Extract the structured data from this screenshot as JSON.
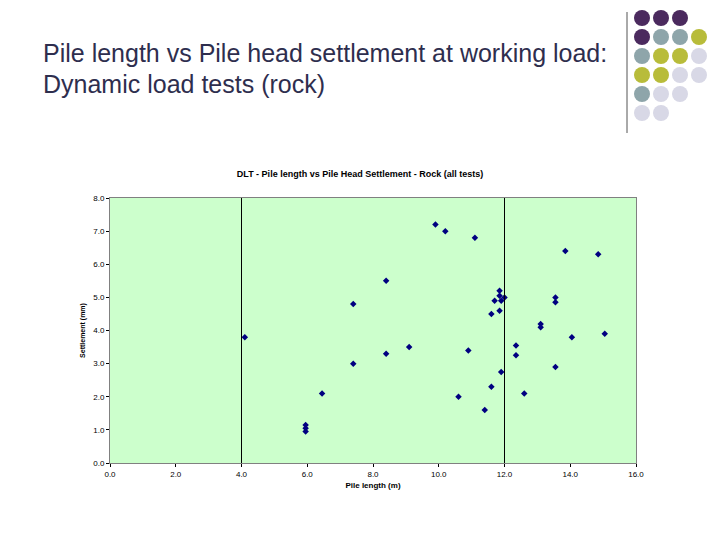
{
  "page_title": "Pile length vs Pile head settlement at working load: Dynamic load tests (rock)",
  "chart_data": {
    "type": "scatter",
    "title": "DLT - Pile length vs Pile Head Settlement - Rock (all tests)",
    "x_label": "Pile length (m)",
    "y_label": "Settlement (mm)",
    "x": [
      4.1,
      5.95,
      5.95,
      5.95,
      6.45,
      7.4,
      7.4,
      8.4,
      8.4,
      9.1,
      9.9,
      10.2,
      10.9,
      10.6,
      11.1,
      11.4,
      11.6,
      11.6,
      11.7,
      11.85,
      11.85,
      11.9,
      12.0,
      11.85,
      11.9,
      12.35,
      12.35,
      12.6,
      13.1,
      13.1,
      13.55,
      13.55,
      13.55,
      13.85,
      14.05,
      14.85,
      15.05
    ],
    "values": [
      3.8,
      1.15,
      1.05,
      0.95,
      2.1,
      4.8,
      3.0,
      5.5,
      3.3,
      3.5,
      7.2,
      7.0,
      3.4,
      2.0,
      6.8,
      1.6,
      2.3,
      4.5,
      4.9,
      5.2,
      5.05,
      4.9,
      5.0,
      4.6,
      2.75,
      3.55,
      3.25,
      2.1,
      4.2,
      4.1,
      5.0,
      4.85,
      2.9,
      6.4,
      3.8,
      6.3,
      3.9
    ],
    "color": "#000080",
    "marker": "diamond",
    "vlines": [
      4,
      12
    ],
    "xlim": [
      0,
      16
    ],
    "xticks": [
      {
        "value": 0,
        "label": "0.0"
      },
      {
        "value": 2,
        "label": "2.0"
      },
      {
        "value": 4,
        "label": "4.0"
      },
      {
        "value": 6,
        "label": "6.0"
      },
      {
        "value": 8,
        "label": "8.0"
      },
      {
        "value": 10,
        "label": "10.0"
      },
      {
        "value": 12,
        "label": "12.0"
      },
      {
        "value": 14,
        "label": "14.0"
      },
      {
        "value": 16,
        "label": "16.0"
      }
    ],
    "ylim": [
      0,
      8
    ],
    "yticks": [
      {
        "value": 0,
        "label": "0.0"
      },
      {
        "value": 1,
        "label": "1.0"
      },
      {
        "value": 2,
        "label": "2.0"
      },
      {
        "value": 3,
        "label": "3.0"
      },
      {
        "value": 4,
        "label": "4.0"
      },
      {
        "value": 5,
        "label": "5.0"
      },
      {
        "value": 6,
        "label": "6.0"
      },
      {
        "value": 7,
        "label": "7.0"
      },
      {
        "value": 8,
        "label": "8.0"
      }
    ],
    "grid": false
  }
}
